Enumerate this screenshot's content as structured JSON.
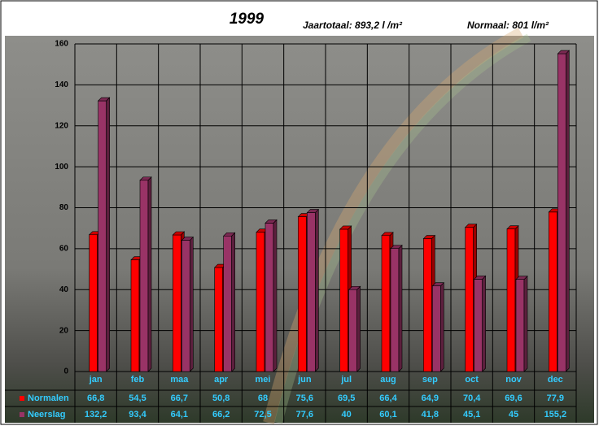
{
  "chart_data": {
    "type": "bar",
    "title": "1999",
    "subtitle": "Jaartotaal: 893,2 l /m²",
    "annotation": "Normaal: 801 l/m²",
    "categories": [
      "jan",
      "feb",
      "maa",
      "apr",
      "mei",
      "jun",
      "jul",
      "aug",
      "sep",
      "oct",
      "nov",
      "dec"
    ],
    "series": [
      {
        "name": "Normalen",
        "color": "#ff0000",
        "values": [
          66.8,
          54.5,
          66.7,
          50.8,
          68,
          75.6,
          69.5,
          66.4,
          64.9,
          70.4,
          69.6,
          77.9
        ],
        "value_labels": [
          "66,8",
          "54,5",
          "66,7",
          "50,8",
          "68",
          "75,6",
          "69,5",
          "66,4",
          "64,9",
          "70,4",
          "69,6",
          "77,9"
        ]
      },
      {
        "name": "Neerslag",
        "color": "#993366",
        "values": [
          132.2,
          93.4,
          64.1,
          66.2,
          72.5,
          77.6,
          40,
          60.1,
          41.8,
          45.1,
          45,
          155.2
        ],
        "value_labels": [
          "132,2",
          "93,4",
          "64,1",
          "66,2",
          "72,5",
          "77,6",
          "40",
          "60,1",
          "41,8",
          "45,1",
          "45",
          "155,2"
        ]
      }
    ],
    "ylim": [
      0,
      160
    ],
    "yticks": [
      0,
      20,
      40,
      60,
      80,
      100,
      120,
      140,
      160
    ],
    "grid": true
  }
}
